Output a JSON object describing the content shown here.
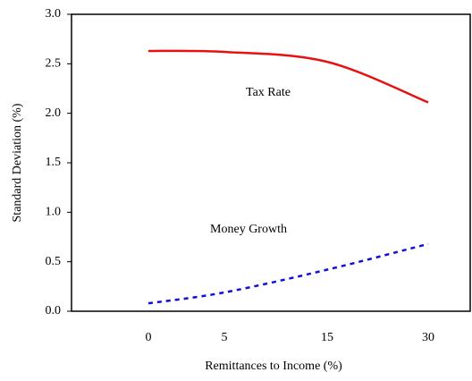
{
  "chart_data": {
    "type": "line",
    "xlabel": "Remittances to Income (%)",
    "ylabel": "Standard Deviation (%)",
    "categories": [
      "0",
      "5",
      "15",
      "30"
    ],
    "series": [
      {
        "name": "Tax Rate",
        "color": "#e81010",
        "dash": "solid",
        "values": [
          2.63,
          2.62,
          2.52,
          2.11
        ]
      },
      {
        "name": "Money Growth",
        "color": "#1010d8",
        "dash": "dashed",
        "values": [
          0.08,
          0.19,
          0.42,
          0.68
        ]
      }
    ],
    "ylim": [
      0,
      3
    ],
    "yticks": [
      {
        "value": 0,
        "label": "0.0"
      },
      {
        "value": 0.5,
        "label": "0.5"
      },
      {
        "value": 1,
        "label": "1.0"
      },
      {
        "value": 1.5,
        "label": "1.5"
      },
      {
        "value": 2,
        "label": "2.0"
      },
      {
        "value": 2.5,
        "label": "2.5"
      },
      {
        "value": 3,
        "label": "3.0"
      }
    ],
    "grid": false
  }
}
